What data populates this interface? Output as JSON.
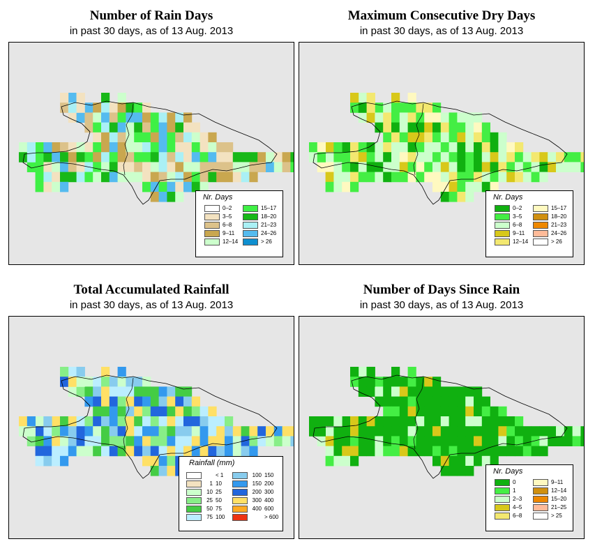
{
  "panels": [
    {
      "title": "Number of Rain Days",
      "subtitle": "in past 30 days, as of  13 Aug. 2013",
      "legend": {
        "title": "Nr. Days",
        "items": [
          {
            "label": "0–2",
            "color": "#ffffff"
          },
          {
            "label": "3–5",
            "color": "#f3e2c0"
          },
          {
            "label": "6–8",
            "color": "#dcc28a"
          },
          {
            "label": "9–11",
            "color": "#c9a74f"
          },
          {
            "label": "12–14",
            "color": "#ccffcc"
          },
          {
            "label": "15–17",
            "color": "#3ff045"
          },
          {
            "label": "18–20",
            "color": "#18b818"
          },
          {
            "label": "21–23",
            "color": "#aaf0f5"
          },
          {
            "label": "24–26",
            "color": "#55bbef"
          },
          {
            "label": "> 26",
            "color": "#0f8fd0"
          }
        ]
      }
    },
    {
      "title": "Maximum Consecutive Dry Days",
      "subtitle": "in past 30 days, as of  13 Aug. 2013",
      "legend": {
        "title": "Nr. Days",
        "items": [
          {
            "label": "0–2",
            "color": "#10b010"
          },
          {
            "label": "3–5",
            "color": "#44ee44"
          },
          {
            "label": "6–8",
            "color": "#ccffcc"
          },
          {
            "label": "9–11",
            "color": "#d8c81a"
          },
          {
            "label": "12–14",
            "color": "#f3e870"
          },
          {
            "label": "15–17",
            "color": "#fff9c0"
          },
          {
            "label": "18–20",
            "color": "#d09010"
          },
          {
            "label": "21–23",
            "color": "#ee8800"
          },
          {
            "label": "24–26",
            "color": "#ffbb99"
          },
          {
            "label": "> 26",
            "color": "#ffffff"
          }
        ]
      }
    },
    {
      "title": "Total Accumulated Rainfall",
      "subtitle": "in past 30 days, as of  13 Aug. 2013",
      "legend": {
        "title": "Rainfall (mm)",
        "items": [
          {
            "lo": "",
            "hi": "< 1",
            "color": "#ffffff"
          },
          {
            "lo": "1",
            "hi": "10",
            "color": "#f3e2c0"
          },
          {
            "lo": "10",
            "hi": "25",
            "color": "#ccffcc"
          },
          {
            "lo": "25",
            "hi": "50",
            "color": "#88ee88"
          },
          {
            "lo": "50",
            "hi": "75",
            "color": "#44cc44"
          },
          {
            "lo": "75",
            "hi": "100",
            "color": "#bbeeff"
          },
          {
            "lo": "100",
            "hi": "150",
            "color": "#88ccee"
          },
          {
            "lo": "150",
            "hi": "200",
            "color": "#3399ee"
          },
          {
            "lo": "200",
            "hi": "300",
            "color": "#2266dd"
          },
          {
            "lo": "300",
            "hi": "400",
            "color": "#ffe066"
          },
          {
            "lo": "400",
            "hi": "600",
            "color": "#ffaa22"
          },
          {
            "lo": "",
            "hi": "> 600",
            "color": "#ee3311"
          }
        ]
      }
    },
    {
      "title": "Number of Days Since Rain",
      "subtitle": "in past 30 days, as of  13 Aug. 2013",
      "legend": {
        "title": "Nr. Days",
        "items": [
          {
            "label": "0",
            "color": "#10b010"
          },
          {
            "label": "1",
            "color": "#44ee44"
          },
          {
            "label": "2–3",
            "color": "#ccffcc"
          },
          {
            "label": "4–5",
            "color": "#d8c81a"
          },
          {
            "label": "6–8",
            "color": "#f3e870"
          },
          {
            "label": "9–11",
            "color": "#fff9c0"
          },
          {
            "label": "12–14",
            "color": "#d09010"
          },
          {
            "label": "15–20",
            "color": "#ee8800"
          },
          {
            "label": "21–25",
            "color": "#ffbb99"
          },
          {
            "label": "> 25",
            "color": "#ffffff"
          }
        ]
      }
    }
  ]
}
